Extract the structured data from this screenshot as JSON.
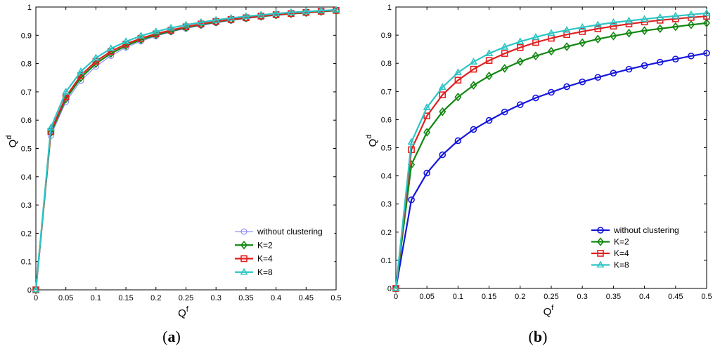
{
  "chart_data": [
    {
      "panel_label": "a",
      "type": "line",
      "xlabel": "Q",
      "xlabel_sup": "f",
      "ylabel": "Q",
      "ylabel_sup": "d",
      "xlim": [
        0,
        0.5
      ],
      "ylim": [
        0,
        1
      ],
      "xticks": [
        0,
        0.05,
        0.1,
        0.15,
        0.2,
        0.25,
        0.3,
        0.35,
        0.4,
        0.45,
        0.5
      ],
      "yticks": [
        0,
        0.1,
        0.2,
        0.3,
        0.4,
        0.5,
        0.6,
        0.7,
        0.8,
        0.9,
        1
      ],
      "grid": false,
      "legend_position": "bottom-right",
      "x": [
        0,
        0.025,
        0.05,
        0.075,
        0.1,
        0.125,
        0.15,
        0.175,
        0.2,
        0.225,
        0.25,
        0.275,
        0.3,
        0.325,
        0.35,
        0.375,
        0.4,
        0.425,
        0.45,
        0.475,
        0.5
      ],
      "series": [
        {
          "name": "without clustering",
          "color": "#7b7bff",
          "marker": "circle",
          "line_width": 1,
          "values": [
            0,
            0.545,
            0.665,
            0.74,
            0.79,
            0.828,
            0.857,
            0.879,
            0.897,
            0.912,
            0.924,
            0.935,
            0.944,
            0.952,
            0.959,
            0.965,
            0.97,
            0.975,
            0.979,
            0.983,
            0.986
          ]
        },
        {
          "name": "K=2",
          "color": "#118811",
          "marker": "diamond",
          "line_width": 2.2,
          "values": [
            0,
            0.555,
            0.675,
            0.75,
            0.8,
            0.836,
            0.863,
            0.884,
            0.901,
            0.915,
            0.927,
            0.938,
            0.947,
            0.955,
            0.961,
            0.967,
            0.972,
            0.976,
            0.98,
            0.984,
            0.987
          ]
        },
        {
          "name": "K=4",
          "color": "#e02020",
          "marker": "square",
          "line_width": 2.2,
          "values": [
            0,
            0.56,
            0.683,
            0.758,
            0.808,
            0.843,
            0.869,
            0.889,
            0.905,
            0.918,
            0.93,
            0.94,
            0.949,
            0.956,
            0.962,
            0.968,
            0.973,
            0.977,
            0.981,
            0.985,
            0.988
          ]
        },
        {
          "name": "K=8",
          "color": "#2ec4c4",
          "marker": "triangle",
          "line_width": 2.2,
          "values": [
            0,
            0.573,
            0.7,
            0.772,
            0.82,
            0.853,
            0.878,
            0.898,
            0.913,
            0.926,
            0.937,
            0.946,
            0.954,
            0.961,
            0.967,
            0.972,
            0.977,
            0.981,
            0.984,
            0.987,
            0.99
          ]
        }
      ]
    },
    {
      "panel_label": "b",
      "type": "line",
      "xlabel": "Q",
      "xlabel_sup": "f",
      "ylabel": "Q",
      "ylabel_sup": "d",
      "xlim": [
        0,
        0.5
      ],
      "ylim": [
        0,
        1
      ],
      "xticks": [
        0,
        0.05,
        0.1,
        0.15,
        0.2,
        0.25,
        0.3,
        0.35,
        0.4,
        0.45,
        0.5
      ],
      "yticks": [
        0,
        0.1,
        0.2,
        0.3,
        0.4,
        0.5,
        0.6,
        0.7,
        0.8,
        0.9,
        1
      ],
      "grid": false,
      "legend_position": "bottom-right",
      "x": [
        0,
        0.025,
        0.05,
        0.075,
        0.1,
        0.125,
        0.15,
        0.175,
        0.2,
        0.225,
        0.25,
        0.275,
        0.3,
        0.325,
        0.35,
        0.375,
        0.4,
        0.425,
        0.45,
        0.475,
        0.5
      ],
      "series": [
        {
          "name": "without clustering",
          "color": "#1515dd",
          "marker": "circle",
          "line_width": 2.2,
          "values": [
            0,
            0.315,
            0.41,
            0.475,
            0.525,
            0.565,
            0.597,
            0.627,
            0.653,
            0.677,
            0.697,
            0.717,
            0.734,
            0.75,
            0.765,
            0.779,
            0.792,
            0.804,
            0.815,
            0.826,
            0.836
          ]
        },
        {
          "name": "K=2",
          "color": "#118811",
          "marker": "diamond",
          "line_width": 2.2,
          "values": [
            0,
            0.44,
            0.555,
            0.628,
            0.68,
            0.722,
            0.755,
            0.782,
            0.806,
            0.826,
            0.843,
            0.859,
            0.873,
            0.886,
            0.897,
            0.907,
            0.916,
            0.923,
            0.93,
            0.937,
            0.943
          ]
        },
        {
          "name": "K=4",
          "color": "#e02020",
          "marker": "square",
          "line_width": 2.2,
          "values": [
            0,
            0.493,
            0.613,
            0.688,
            0.74,
            0.779,
            0.81,
            0.835,
            0.856,
            0.874,
            0.889,
            0.902,
            0.913,
            0.923,
            0.932,
            0.94,
            0.947,
            0.953,
            0.958,
            0.963,
            0.967
          ]
        },
        {
          "name": "K=8",
          "color": "#2ec4c4",
          "marker": "triangle",
          "line_width": 2.2,
          "values": [
            0,
            0.52,
            0.643,
            0.715,
            0.767,
            0.805,
            0.835,
            0.858,
            0.877,
            0.893,
            0.907,
            0.918,
            0.928,
            0.937,
            0.945,
            0.951,
            0.957,
            0.963,
            0.968,
            0.973,
            0.978
          ]
        }
      ]
    }
  ]
}
